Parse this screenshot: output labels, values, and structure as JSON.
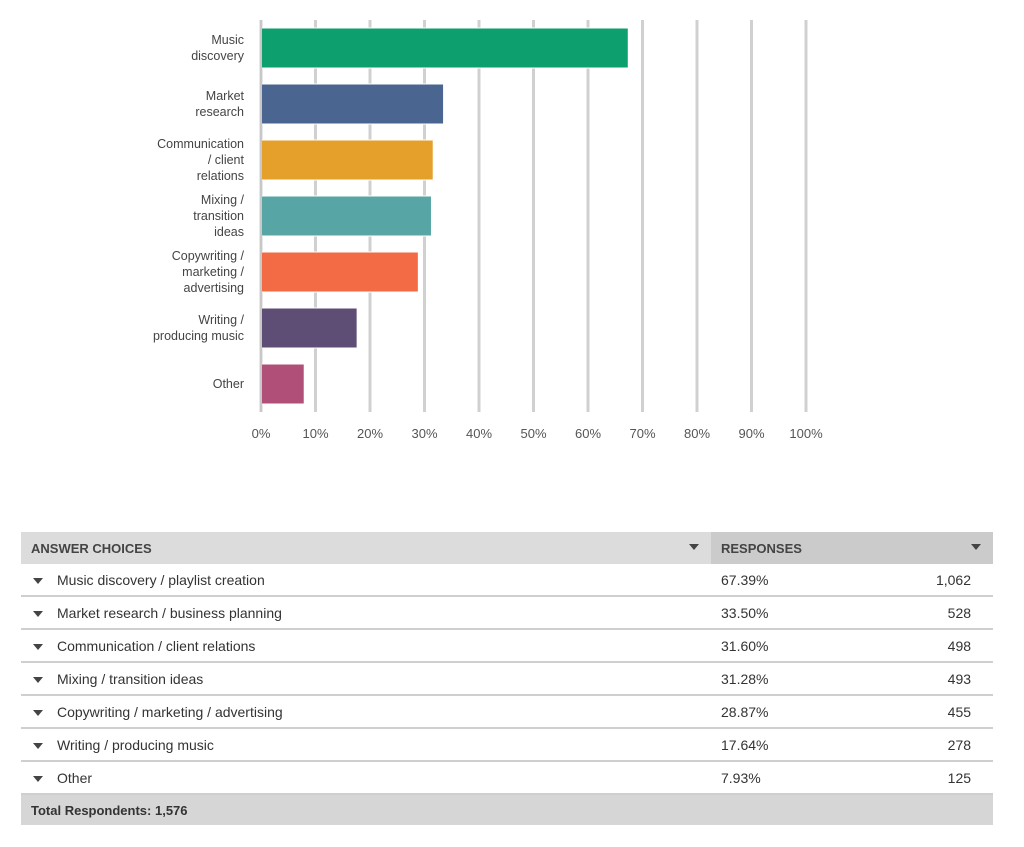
{
  "chart_data": {
    "type": "bar",
    "orientation": "horizontal",
    "categories": [
      "Music\ndiscovery",
      "Market\nresearch",
      "Communication\n/ client\nrelations",
      "Mixing /\ntransition\nideas",
      "Copywriting /\nmarketing /\nadvertising",
      "Writing /\nproducing music",
      "Other"
    ],
    "values": [
      67.39,
      33.5,
      31.6,
      31.28,
      28.87,
      17.64,
      7.93
    ],
    "colors": [
      "#0e9f6e",
      "#4a6690",
      "#e4a02b",
      "#58a5a5",
      "#f26b45",
      "#5e4e75",
      "#b04f78"
    ],
    "xlim": [
      0,
      100
    ],
    "xticks": [
      "0%",
      "10%",
      "20%",
      "30%",
      "40%",
      "50%",
      "60%",
      "70%",
      "80%",
      "90%",
      "100%"
    ],
    "grid": true,
    "title": "",
    "xlabel": "",
    "ylabel": ""
  },
  "table": {
    "headers": {
      "choices": "ANSWER CHOICES",
      "responses": "RESPONSES"
    },
    "rows": [
      {
        "label": "Music discovery / playlist creation",
        "percent": "67.39%",
        "count": "1,062"
      },
      {
        "label": "Market research / business planning",
        "percent": "33.50%",
        "count": "528"
      },
      {
        "label": "Communication / client relations",
        "percent": "31.60%",
        "count": "498"
      },
      {
        "label": "Mixing / transition ideas",
        "percent": "31.28%",
        "count": "493"
      },
      {
        "label": "Copywriting / marketing / advertising",
        "percent": "28.87%",
        "count": "455"
      },
      {
        "label": "Writing / producing music",
        "percent": "17.64%",
        "count": "278"
      },
      {
        "label": "Other",
        "percent": "7.93%",
        "count": "125"
      }
    ],
    "total_label": "Total Respondents: 1,576"
  }
}
